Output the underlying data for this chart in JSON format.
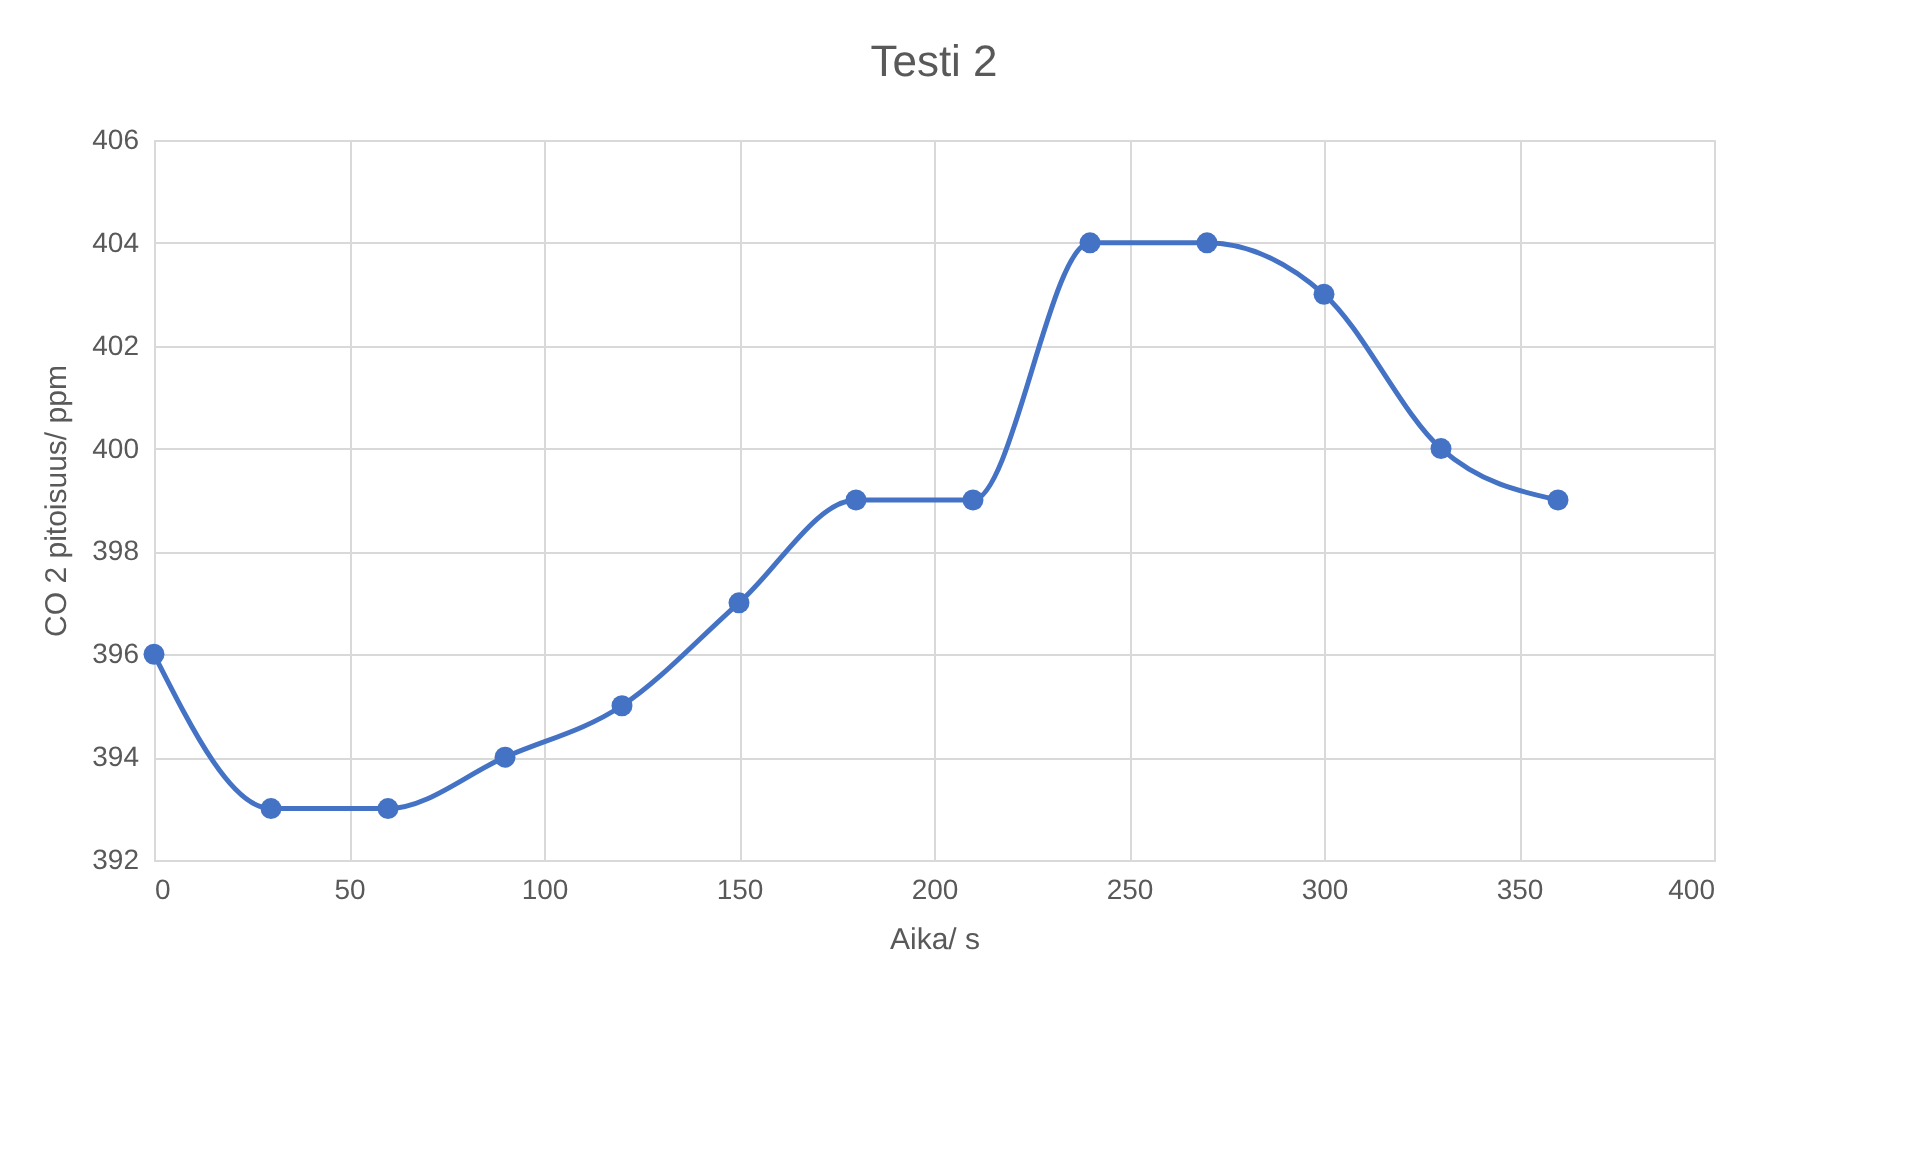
{
  "chart_data": {
    "type": "line",
    "title": "Testi 2",
    "xlabel": "Aika/ s",
    "ylabel": "CO 2 pitoisuus/ ppm",
    "x": [
      0,
      30,
      60,
      90,
      120,
      150,
      180,
      210,
      240,
      270,
      300,
      330,
      360
    ],
    "series": [
      {
        "color": "#4472c4",
        "values": [
          396,
          393,
          393,
          394,
          395,
          397,
          399,
          399,
          404,
          404,
          403,
          400,
          399
        ]
      }
    ],
    "xlim": [
      0,
      400
    ],
    "xticks": [
      0,
      50,
      100,
      150,
      200,
      250,
      300,
      350,
      400
    ],
    "ylim": [
      392,
      406
    ],
    "yticks": [
      392,
      394,
      396,
      398,
      400,
      402,
      404,
      406
    ],
    "grid": true,
    "marker": "circle",
    "line_style": "solid"
  }
}
